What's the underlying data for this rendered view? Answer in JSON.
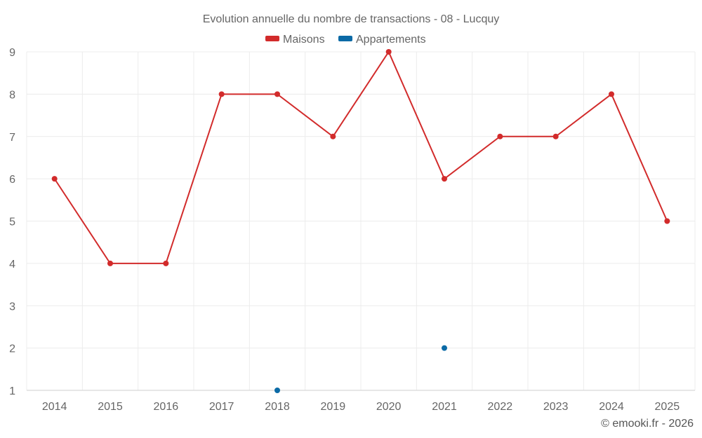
{
  "chart_data": {
    "type": "line",
    "title": "Evolution annuelle du nombre de transactions - 08 - Lucquy",
    "categories": [
      "2014",
      "2015",
      "2016",
      "2017",
      "2018",
      "2019",
      "2020",
      "2021",
      "2022",
      "2023",
      "2024",
      "2025"
    ],
    "series": [
      {
        "name": "Maisons",
        "color": "#d22b2b",
        "values": [
          6,
          4,
          4,
          8,
          8,
          7,
          9,
          6,
          7,
          7,
          8,
          5
        ]
      },
      {
        "name": "Appartements",
        "color": "#0b6aa6",
        "values": [
          null,
          null,
          null,
          null,
          1,
          null,
          null,
          2,
          null,
          null,
          null,
          null
        ]
      }
    ],
    "ylim": [
      1,
      9
    ],
    "yticks": [
      1,
      2,
      3,
      4,
      5,
      6,
      7,
      8,
      9
    ],
    "grid": true,
    "legend": "top-center",
    "xlabel": "",
    "ylabel": ""
  },
  "credit": "© emooki.fr - 2026"
}
